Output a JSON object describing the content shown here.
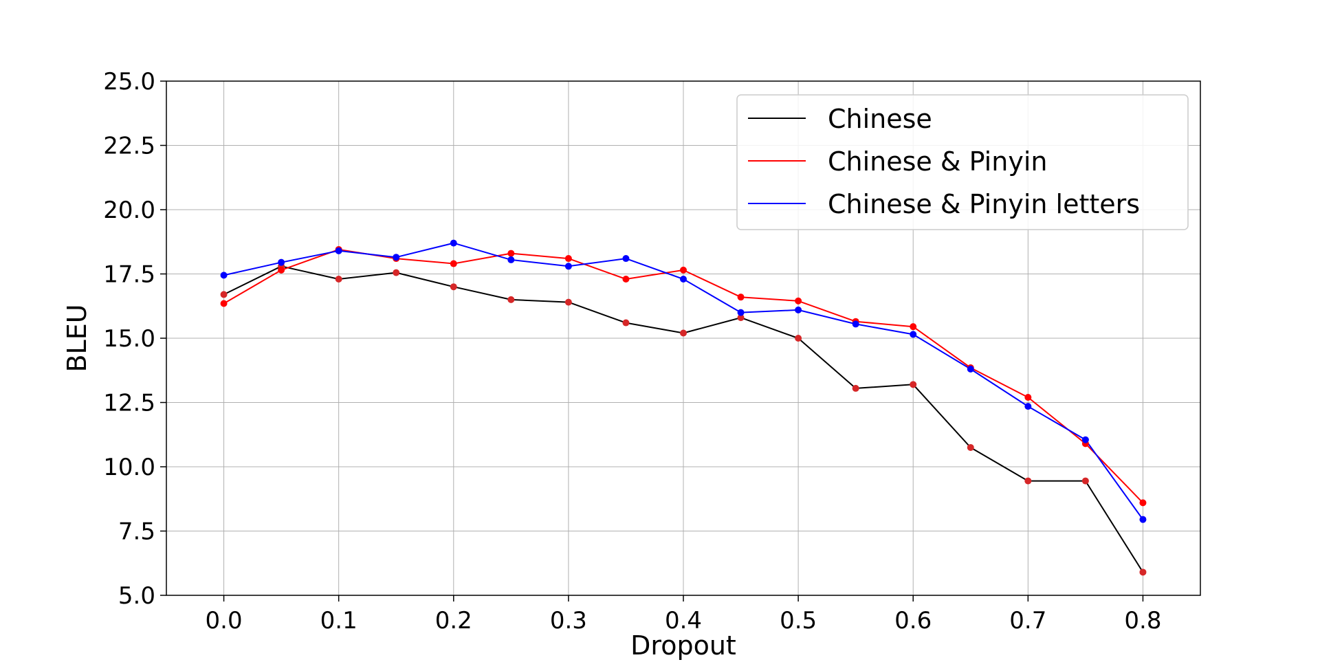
{
  "chart_data": {
    "type": "line",
    "xlabel": "Dropout",
    "ylabel": "BLEU",
    "xlim": [
      -0.05,
      0.85
    ],
    "ylim": [
      5.0,
      25.0
    ],
    "x": [
      0.0,
      0.05,
      0.1,
      0.15,
      0.2,
      0.25,
      0.3,
      0.35,
      0.4,
      0.45,
      0.5,
      0.55,
      0.6,
      0.65,
      0.7,
      0.75,
      0.8
    ],
    "x_ticks": [
      "0.0",
      "0.1",
      "0.2",
      "0.3",
      "0.4",
      "0.5",
      "0.6",
      "0.7",
      "0.8"
    ],
    "y_ticks": [
      "5.0",
      "7.5",
      "10.0",
      "12.5",
      "15.0",
      "17.5",
      "20.0",
      "22.5",
      "25.0"
    ],
    "grid": true,
    "legend_position": "top-right",
    "series": [
      {
        "name": "Chinese",
        "color": "#000000",
        "marker_color": "#d62728",
        "values": [
          16.7,
          17.8,
          17.3,
          17.55,
          17.0,
          16.5,
          16.4,
          15.6,
          15.2,
          15.8,
          15.0,
          13.05,
          13.2,
          10.75,
          9.45,
          9.45,
          5.9
        ]
      },
      {
        "name": "Chinese & Pinyin",
        "color": "#ff0000",
        "marker_color": "#ff0000",
        "values": [
          16.35,
          17.65,
          18.45,
          18.1,
          17.9,
          18.3,
          18.1,
          17.3,
          17.65,
          16.6,
          16.45,
          15.65,
          15.45,
          13.85,
          12.7,
          10.9,
          8.6
        ]
      },
      {
        "name": "Chinese & Pinyin letters",
        "color": "#0000ff",
        "marker_color": "#0000ff",
        "values": [
          17.45,
          17.95,
          18.4,
          18.15,
          18.7,
          18.05,
          17.8,
          18.1,
          17.3,
          16.0,
          16.1,
          15.55,
          15.15,
          13.8,
          12.35,
          11.05,
          7.95
        ]
      }
    ]
  }
}
